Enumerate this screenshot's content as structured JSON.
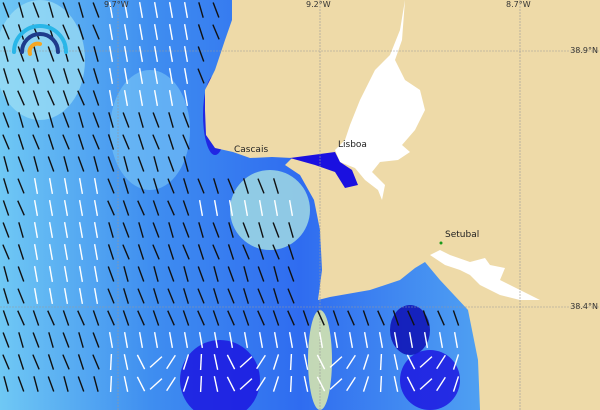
{
  "map": {
    "places": [
      {
        "name": "Cascais"
      },
      {
        "name": "Lisboa"
      },
      {
        "name": "Setubal"
      }
    ],
    "longitude_labels": [
      "9.7°W",
      "9.2°W",
      "8.7°W"
    ],
    "latitude_labels": [
      "38.9°N",
      "38.4°N"
    ],
    "colors": {
      "land": "#eedaa8",
      "water_inland": "#ffffff",
      "ocean_deep": "#1a10e0",
      "ocean_mid": "#3f8ef0",
      "ocean_light": "#9fe0f4",
      "arrow_dark": "#111111",
      "arrow_light": "#ffffff"
    },
    "logo": {
      "icon": "wave-arcs-logo-icon"
    }
  }
}
